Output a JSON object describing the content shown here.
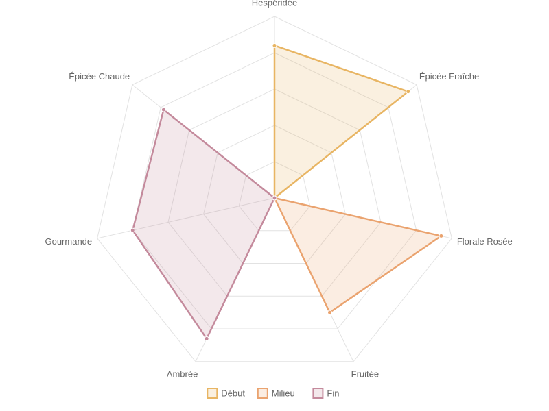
{
  "chart_data": {
    "type": "radar",
    "axes": [
      "Hespéridée",
      "Épicée Fraîche",
      "Florale Rosée",
      "Fruitée",
      "Ambrée",
      "Gourmande",
      "Épicée Chaude"
    ],
    "rlim": [
      0,
      5
    ],
    "gridlines": [
      1,
      2,
      3,
      4,
      5
    ],
    "grid": true,
    "legend": "bottom",
    "series": [
      {
        "name": "Début",
        "color": "#e8b563",
        "fill": "rgba(232,181,99,0.2)",
        "values": [
          4.2,
          4.7,
          0,
          0,
          0,
          0,
          0
        ]
      },
      {
        "name": "Milieu",
        "color": "#eaa36f",
        "fill": "rgba(234,163,111,0.2)",
        "values": [
          0,
          0,
          4.7,
          3.5,
          0,
          0,
          0
        ]
      },
      {
        "name": "Fin",
        "color": "#c48a9c",
        "fill": "rgba(196,138,156,0.2)",
        "values": [
          0,
          0,
          0,
          0,
          4.3,
          4.0,
          3.9
        ]
      }
    ]
  }
}
